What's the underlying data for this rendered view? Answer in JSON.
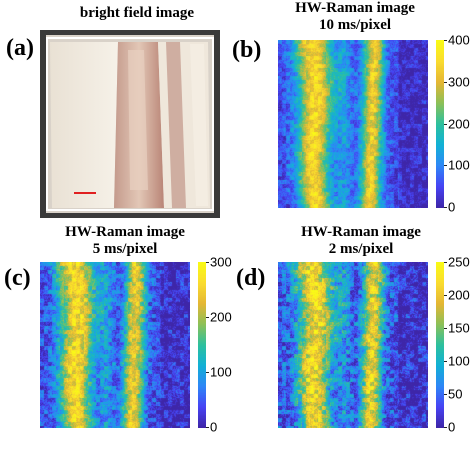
{
  "panels": [
    {
      "id": "a",
      "label": "(a)",
      "title_lines": [
        "bright field image"
      ],
      "kind": "photo"
    },
    {
      "id": "b",
      "label": "(b)",
      "title_lines": [
        "HW-Raman image",
        "10 ms/pixel"
      ],
      "kind": "heatmap",
      "colorbar_ticks": [
        "400",
        "300",
        "200",
        "100",
        "0"
      ],
      "colorbar_range": [
        0,
        400
      ]
    },
    {
      "id": "c",
      "label": "(c)",
      "title_lines": [
        "HW-Raman image",
        "5 ms/pixel"
      ],
      "kind": "heatmap",
      "colorbar_ticks": [
        "300",
        "200",
        "100",
        "0"
      ],
      "colorbar_range": [
        0,
        300
      ]
    },
    {
      "id": "d",
      "label": "(d)",
      "title_lines": [
        "HW-Raman image",
        "2 ms/pixel"
      ],
      "kind": "heatmap",
      "colorbar_ticks": [
        "250",
        "200",
        "150",
        "100",
        "50",
        "0"
      ],
      "colorbar_range": [
        0,
        250
      ]
    }
  ],
  "colors": {
    "colormap": [
      "#3e26a8",
      "#4743f4",
      "#2e87f7",
      "#12b1d6",
      "#2dc09e",
      "#8cc058",
      "#e5b734",
      "#fadc2f",
      "#f9fb15"
    ],
    "scale_bar": "#e02020"
  }
}
